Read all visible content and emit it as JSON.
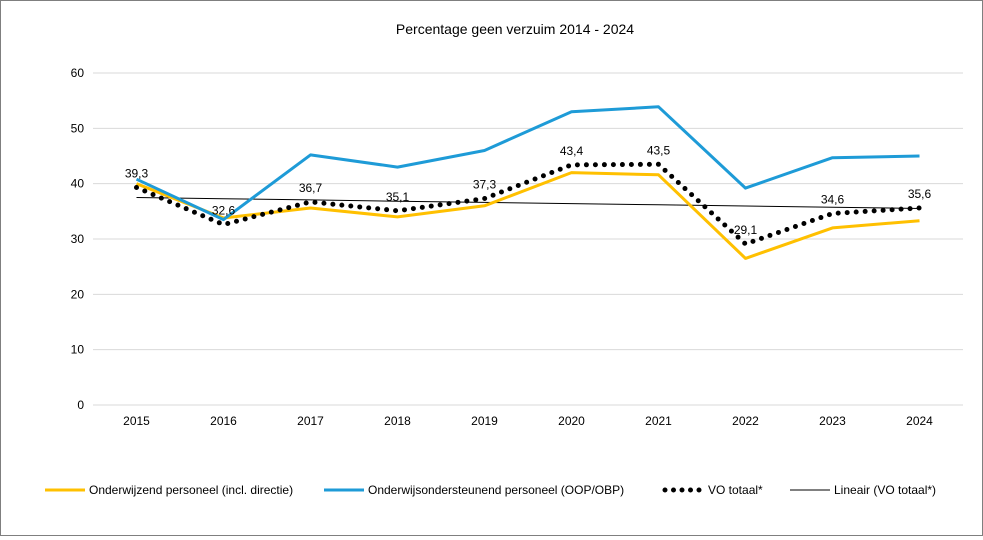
{
  "chart_data": {
    "type": "line",
    "title": "Percentage geen verzuim  2014 - 2024",
    "xlabel": "",
    "ylabel": "",
    "ylim": [
      0,
      60
    ],
    "yticks": [
      0,
      10,
      20,
      30,
      40,
      50,
      60
    ],
    "grid": true,
    "legend_position": "bottom",
    "categories": [
      "2015",
      "2016",
      "2017",
      "2018",
      "2019",
      "2020",
      "2021",
      "2022",
      "2023",
      "2024"
    ],
    "series": [
      {
        "name": "Onderwijzend personeel (incl. directie)",
        "color": "#FFC000",
        "style": "solid",
        "values": [
          40.0,
          33.8,
          35.6,
          34.0,
          36.0,
          42.0,
          41.6,
          26.5,
          32.0,
          33.3
        ]
      },
      {
        "name": "Onderwijsondersteunend personeel (OOP/OBP)",
        "color": "#1E9BD7",
        "style": "solid",
        "values": [
          40.8,
          33.5,
          45.2,
          43.0,
          46.0,
          53.0,
          53.9,
          39.2,
          44.7,
          45.0
        ]
      },
      {
        "name": "VO totaal*",
        "color": "#000000",
        "style": "dotted",
        "values": [
          39.3,
          32.6,
          36.7,
          35.1,
          37.3,
          43.4,
          43.5,
          29.1,
          34.6,
          35.6
        ],
        "labels": [
          "39,3",
          "32,6",
          "36,7",
          "35,1",
          "37,3",
          "43,4",
          "43,5",
          "29,1",
          "34,6",
          "35,6"
        ]
      },
      {
        "name": "Lineair (VO totaal*)",
        "color": "#000000",
        "style": "thin",
        "values": [
          37.5,
          37.28,
          37.06,
          36.84,
          36.62,
          36.4,
          36.18,
          35.96,
          35.74,
          35.52
        ]
      }
    ]
  }
}
